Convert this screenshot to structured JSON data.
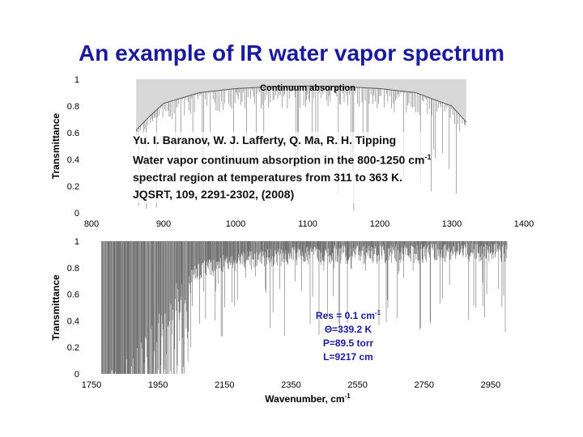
{
  "title": "An example of IR water vapor spectrum",
  "reference": {
    "authors": "Yu. I. Baranov, W. J. Lafferty, Q. Ma, R. H. Tipping",
    "line2_pre": "Water vapor continuum absorption in the 800-1250 cm",
    "line2_sup": "-1",
    "line3": "spectral region at temperatures from 311 to 363 K.",
    "line4": "JQSRT, 109, 2291-2302, (2008)"
  },
  "conditions": {
    "res_pre": "Res = 0.1 cm",
    "res_sup": "-1",
    "theta": "Θ=339.2 K",
    "pressure": "P=89.5 torr",
    "path": "L=9217 cm"
  },
  "colors": {
    "title": "#1a1a9e",
    "spectrum": "#6e6e6e",
    "continuum_fill": "#d8d8d8",
    "params": "#1a1a9e"
  },
  "chart_data": [
    {
      "type": "area",
      "ylabel": "Transmittance",
      "xlim": [
        800,
        1400
      ],
      "ylim": [
        0,
        1
      ],
      "xticks": [
        800,
        900,
        1000,
        1100,
        1200,
        1300,
        1400
      ],
      "yticks": [
        0,
        0.2,
        0.4,
        0.6,
        0.8,
        1
      ],
      "annotations": [
        "Continuum absorption"
      ],
      "series": [
        {
          "x": [
            862,
            880,
            900,
            950,
            1000,
            1050,
            1100,
            1150,
            1200,
            1250,
            1300,
            1320
          ],
          "y": [
            0.62,
            0.72,
            0.82,
            0.9,
            0.93,
            0.945,
            0.95,
            0.945,
            0.93,
            0.9,
            0.8,
            0.68
          ]
        }
      ]
    },
    {
      "type": "line",
      "xlabel": "Wavenumber, cm",
      "xlabel_sup": "-1",
      "ylabel": "Transmittance",
      "xlim": [
        1750,
        3050
      ],
      "ylim": [
        0,
        1
      ],
      "xticks": [
        1750,
        1950,
        2150,
        2350,
        2550,
        2750,
        2950
      ],
      "yticks": [
        0,
        0.2,
        0.4,
        0.6,
        0.8,
        1
      ],
      "series": [
        {
          "x": [
            1780,
            1850,
            1900,
            1950,
            2000,
            2050,
            2100,
            2200,
            2300,
            2350,
            2400,
            2500,
            2600,
            2700,
            2750,
            2800,
            2850,
            2900,
            2950,
            3000
          ],
          "y": [
            0.0,
            0.1,
            0.25,
            0.45,
            0.68,
            0.8,
            0.87,
            0.92,
            0.95,
            0.96,
            0.96,
            0.97,
            0.97,
            0.98,
            0.98,
            0.98,
            0.99,
            0.99,
            0.99,
            0.99
          ]
        }
      ]
    }
  ]
}
